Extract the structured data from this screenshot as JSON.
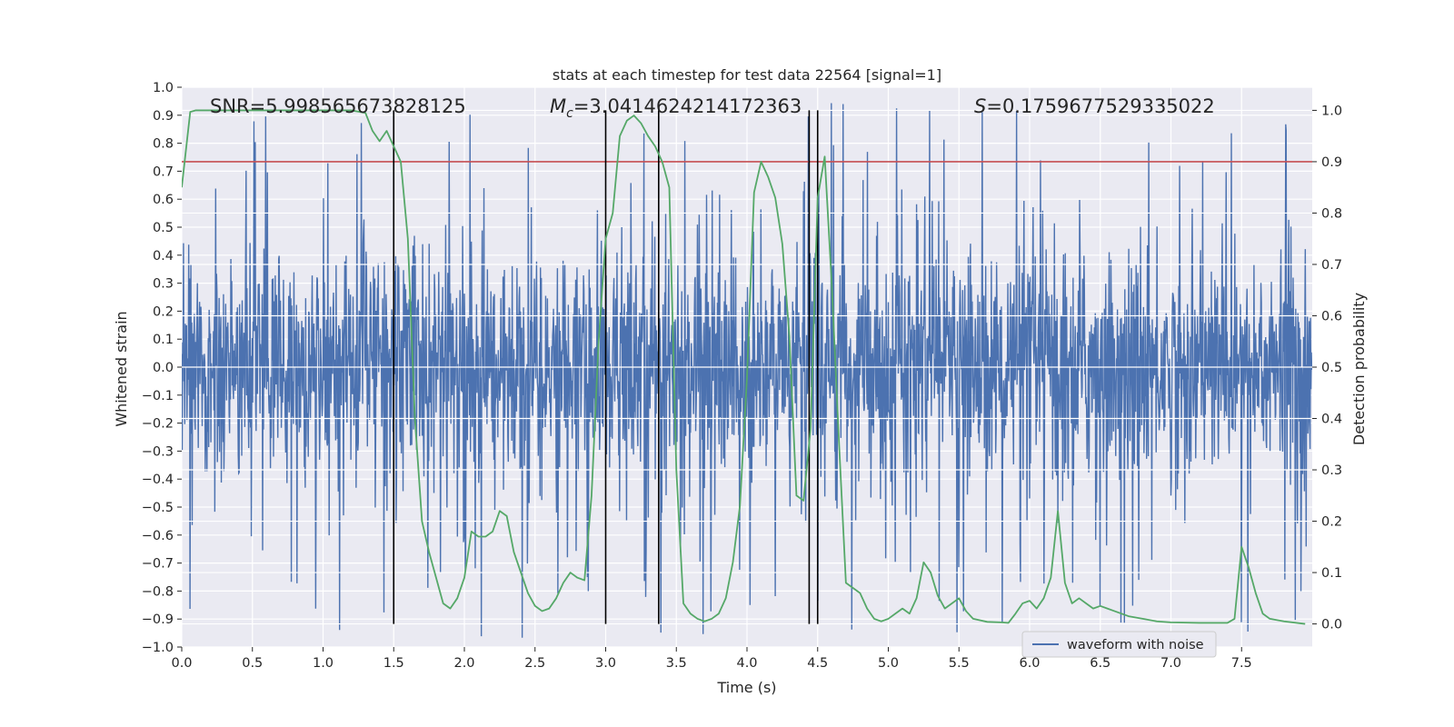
{
  "chart_data": {
    "type": "line",
    "title": "stats at each timestep for test data 22564 [signal=1]",
    "xlabel": "Time (s)",
    "ylabel": "Whitened strain",
    "y2label": "Detection probability",
    "xlim": [
      0.0,
      8.0
    ],
    "ylim": [
      -1.0,
      1.0
    ],
    "y2lim": [
      -0.045,
      1.045
    ],
    "x_ticks": [
      "0.0",
      "0.5",
      "1.0",
      "1.5",
      "2.0",
      "2.5",
      "3.0",
      "3.5",
      "4.0",
      "4.5",
      "5.0",
      "5.5",
      "6.0",
      "6.5",
      "7.0",
      "7.5"
    ],
    "y_ticks": [
      "1.0",
      "0.9",
      "0.8",
      "0.7",
      "0.6",
      "0.5",
      "0.4",
      "0.3",
      "0.2",
      "0.1",
      "0.0",
      "−0.1",
      "−0.2",
      "−0.3",
      "−0.4",
      "−0.5",
      "−0.6",
      "−0.7",
      "−0.8",
      "−0.9",
      "−1.0"
    ],
    "y2_ticks": [
      "1.0",
      "0.9",
      "0.8",
      "0.7",
      "0.6",
      "0.5",
      "0.4",
      "0.3",
      "0.2",
      "0.1",
      "0.0"
    ],
    "annotations": {
      "snr": "SNR=5.998565673828125",
      "mc_symbol": "M",
      "mc_subscript": "c",
      "mc_value": "=3.0414624214172363",
      "s_symbol": "S",
      "s_value": "=0.1759677529335022"
    },
    "legend": {
      "label": "waveform with noise",
      "placement": "lower right"
    },
    "series": [
      {
        "name": "waveform with noise",
        "color": "#4c72b0",
        "kind": "noise",
        "typical_amplitude": 0.5,
        "peak_amplitude": 0.97
      },
      {
        "name": "detection probability",
        "color": "#55a868",
        "axis": "right",
        "x": [
          0.0,
          0.06,
          0.1,
          0.2,
          0.4,
          0.6,
          0.8,
          1.0,
          1.2,
          1.3,
          1.35,
          1.4,
          1.45,
          1.5,
          1.55,
          1.6,
          1.65,
          1.7,
          1.75,
          1.8,
          1.85,
          1.9,
          1.95,
          2.0,
          2.05,
          2.1,
          2.15,
          2.2,
          2.25,
          2.3,
          2.35,
          2.4,
          2.45,
          2.5,
          2.55,
          2.6,
          2.65,
          2.7,
          2.75,
          2.8,
          2.85,
          2.9,
          2.95,
          3.0,
          3.05,
          3.1,
          3.15,
          3.2,
          3.25,
          3.3,
          3.35,
          3.4,
          3.45,
          3.5,
          3.55,
          3.6,
          3.65,
          3.7,
          3.75,
          3.8,
          3.85,
          3.9,
          3.95,
          4.0,
          4.05,
          4.1,
          4.15,
          4.2,
          4.25,
          4.3,
          4.35,
          4.4,
          4.45,
          4.5,
          4.55,
          4.6,
          4.65,
          4.7,
          4.75,
          4.8,
          4.85,
          4.9,
          4.95,
          5.0,
          5.05,
          5.1,
          5.15,
          5.2,
          5.25,
          5.3,
          5.35,
          5.4,
          5.45,
          5.5,
          5.55,
          5.6,
          5.7,
          5.8,
          5.85,
          5.9,
          5.95,
          6.0,
          6.05,
          6.1,
          6.15,
          6.2,
          6.25,
          6.3,
          6.35,
          6.4,
          6.45,
          6.5,
          6.55,
          6.6,
          6.7,
          6.8,
          6.9,
          7.0,
          7.2,
          7.4,
          7.45,
          7.5,
          7.55,
          7.6,
          7.65,
          7.7,
          7.8,
          7.95
        ],
        "values": [
          0.85,
          0.997,
          1.0,
          1.0,
          1.0,
          1.0,
          1.0,
          1.0,
          1.0,
          0.995,
          0.96,
          0.94,
          0.96,
          0.93,
          0.9,
          0.75,
          0.4,
          0.2,
          0.14,
          0.09,
          0.04,
          0.03,
          0.05,
          0.09,
          0.18,
          0.17,
          0.17,
          0.18,
          0.22,
          0.21,
          0.14,
          0.1,
          0.06,
          0.035,
          0.025,
          0.03,
          0.05,
          0.08,
          0.1,
          0.09,
          0.085,
          0.25,
          0.55,
          0.75,
          0.8,
          0.95,
          0.98,
          0.99,
          0.975,
          0.95,
          0.93,
          0.9,
          0.85,
          0.3,
          0.04,
          0.02,
          0.01,
          0.005,
          0.01,
          0.02,
          0.05,
          0.12,
          0.23,
          0.48,
          0.84,
          0.9,
          0.87,
          0.83,
          0.74,
          0.56,
          0.25,
          0.24,
          0.38,
          0.83,
          0.91,
          0.66,
          0.36,
          0.08,
          0.07,
          0.06,
          0.03,
          0.01,
          0.005,
          0.01,
          0.02,
          0.03,
          0.02,
          0.05,
          0.12,
          0.1,
          0.055,
          0.03,
          0.04,
          0.05,
          0.025,
          0.01,
          0.004,
          0.003,
          0.002,
          0.02,
          0.04,
          0.045,
          0.03,
          0.05,
          0.09,
          0.22,
          0.08,
          0.04,
          0.05,
          0.04,
          0.03,
          0.035,
          0.03,
          0.025,
          0.015,
          0.01,
          0.005,
          0.003,
          0.002,
          0.002,
          0.01,
          0.15,
          0.11,
          0.06,
          0.02,
          0.01,
          0.005,
          0.0
        ]
      },
      {
        "name": "threshold",
        "color": "#c44e52",
        "axis": "right",
        "value": 0.9
      }
    ],
    "vlines_s": [
      1.5,
      3.0,
      3.375,
      4.44,
      4.5
    ],
    "vline_color": "#000000"
  }
}
